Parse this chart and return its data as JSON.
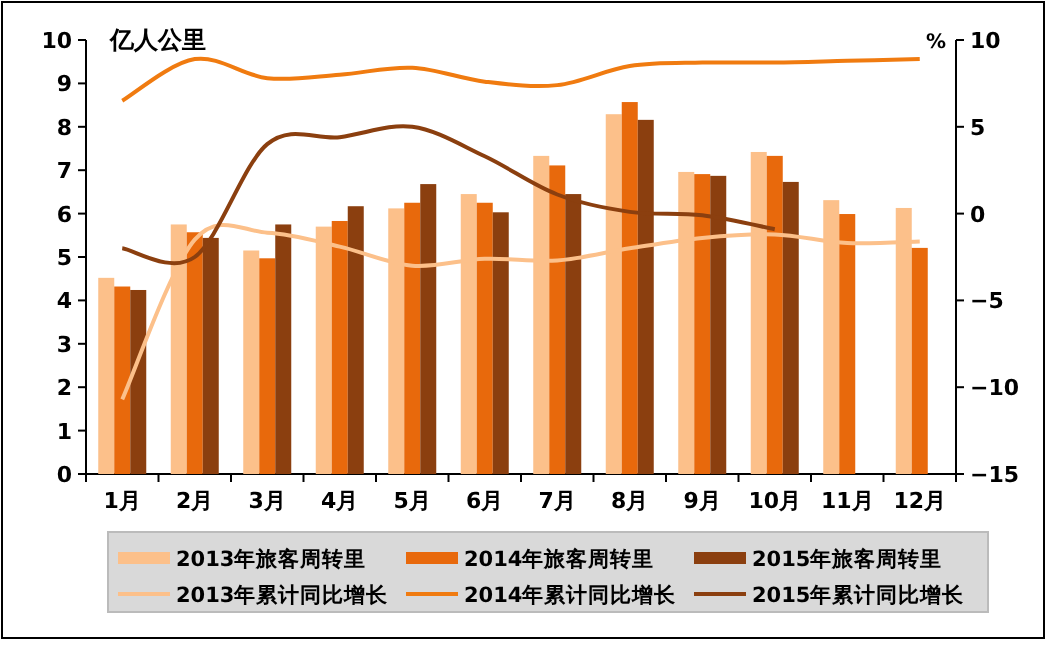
{
  "chart_data": {
    "type": "bar",
    "ylabel": "亿人公里",
    "y2label": "%",
    "categories": [
      "1月",
      "2月",
      "3月",
      "4月",
      "5月",
      "6月",
      "7月",
      "8月",
      "9月",
      "10月",
      "11月",
      "12月"
    ],
    "series": [
      {
        "name": "2013年旅客周转里",
        "color": "#fcc08a",
        "values": [
          4.52,
          5.75,
          5.15,
          5.7,
          6.12,
          6.45,
          7.33,
          8.29,
          6.96,
          7.42,
          6.31,
          6.13
        ]
      },
      {
        "name": "2014年旅客周转里",
        "color": "#e8690c",
        "values": [
          4.32,
          5.57,
          4.97,
          5.83,
          6.25,
          6.25,
          7.11,
          8.57,
          6.91,
          7.33,
          5.99,
          5.21
        ]
      },
      {
        "name": "2015年旅客周转里",
        "color": "#8b3f0f",
        "values": [
          4.24,
          5.44,
          5.75,
          6.17,
          6.68,
          6.03,
          6.45,
          8.16,
          6.87,
          6.73,
          null,
          null
        ]
      },
      {
        "name": "2013年累计同比增长",
        "type": "line",
        "axis": "y2",
        "color": "#fcc08a",
        "values": [
          -10.7,
          -1.5,
          -1.1,
          -1.9,
          -3.0,
          -2.6,
          -2.7,
          -2.0,
          -1.4,
          -1.2,
          -1.7,
          -1.6
        ]
      },
      {
        "name": "2014年累计同比增长",
        "type": "line",
        "axis": "y2",
        "color": "#f07b10",
        "values": [
          6.5,
          8.9,
          7.8,
          8.0,
          8.4,
          7.6,
          7.4,
          8.5,
          8.7,
          8.7,
          8.8,
          8.9
        ]
      },
      {
        "name": "2015年累计同比增长",
        "type": "line",
        "axis": "y2",
        "color": "#8b3f0f",
        "values": [
          -2.0,
          -2.5,
          4.0,
          4.4,
          5.0,
          3.3,
          1.1,
          0.1,
          -0.1,
          -0.9,
          null,
          null
        ]
      }
    ],
    "ylim": [
      0,
      10
    ],
    "yticks": [
      0,
      1,
      2,
      3,
      4,
      5,
      6,
      7,
      8,
      9,
      10
    ],
    "y2lim": [
      -15,
      10
    ],
    "y2ticks": [
      -15,
      -10,
      -5,
      0,
      5,
      10
    ],
    "legend": "bottom"
  }
}
